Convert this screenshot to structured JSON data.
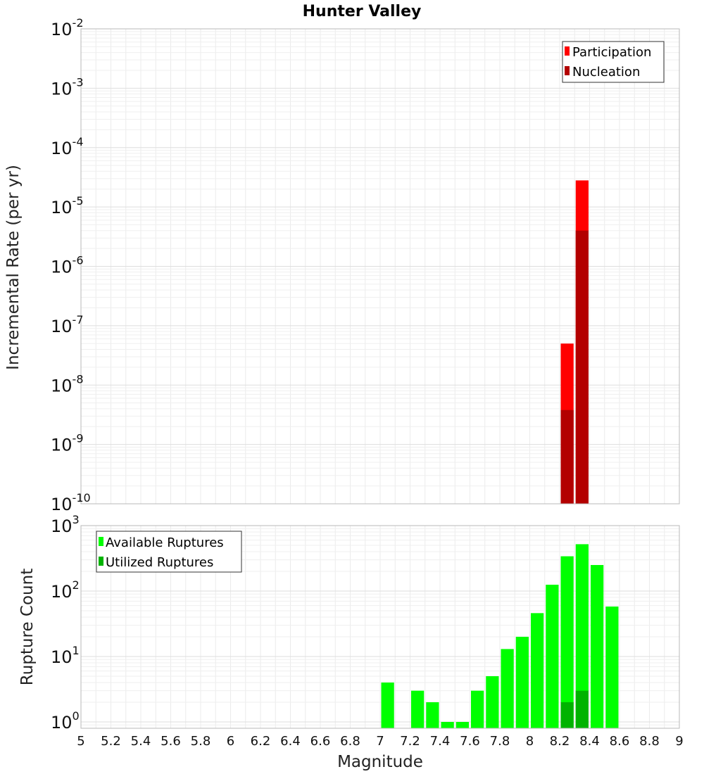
{
  "chart_data": [
    {
      "type": "bar",
      "title": "Hunter Valley",
      "xlabel": "Magnitude",
      "ylabel": "Incremental Rate (per yr)",
      "yscale": "log",
      "ylim": [
        1e-10,
        0.01
      ],
      "xlim": [
        5,
        9
      ],
      "bin_width": 0.1,
      "legend": {
        "position": "top-right",
        "entries": [
          "Participation",
          "Nucleation"
        ]
      },
      "colors": {
        "Participation": "#ff0000",
        "Nucleation": "#b30000"
      },
      "series": [
        {
          "name": "Participation",
          "x": [
            8.25,
            8.35
          ],
          "values": [
            5e-08,
            2.8e-05
          ]
        },
        {
          "name": "Nucleation",
          "x": [
            8.25,
            8.35
          ],
          "values": [
            3.8e-09,
            4e-06
          ]
        }
      ]
    },
    {
      "type": "bar",
      "xlabel": "Magnitude",
      "ylabel": "Rupture Count",
      "yscale": "log",
      "ylim": [
        0.8,
        1000
      ],
      "xlim": [
        5,
        9
      ],
      "bin_width": 0.1,
      "legend": {
        "position": "top-left",
        "entries": [
          "Available Ruptures",
          "Utilized Ruptures"
        ]
      },
      "colors": {
        "Available Ruptures": "#00ff00",
        "Utilized Ruptures": "#00b300"
      },
      "series": [
        {
          "name": "Available Ruptures",
          "x": [
            7.05,
            7.25,
            7.35,
            7.45,
            7.55,
            7.65,
            7.75,
            7.85,
            7.95,
            8.05,
            8.15,
            8.25,
            8.35,
            8.45,
            8.55
          ],
          "values": [
            4,
            3,
            2,
            1,
            1,
            3,
            5,
            13,
            20,
            46,
            125,
            340,
            520,
            250,
            58
          ]
        },
        {
          "name": "Utilized Ruptures",
          "x": [
            8.25,
            8.35
          ],
          "values": [
            2,
            3
          ]
        }
      ]
    }
  ],
  "x_ticks": [
    "5",
    "5.2",
    "5.4",
    "5.6",
    "5.8",
    "6",
    "6.2",
    "6.4",
    "6.6",
    "6.8",
    "7",
    "7.2",
    "7.4",
    "7.6",
    "7.8",
    "8",
    "8.2",
    "8.4",
    "8.6",
    "8.8",
    "9"
  ],
  "top_y_ticks": [
    {
      "base": "10",
      "exp": "-2"
    },
    {
      "base": "10",
      "exp": "-3"
    },
    {
      "base": "10",
      "exp": "-4"
    },
    {
      "base": "10",
      "exp": "-5"
    },
    {
      "base": "10",
      "exp": "-6"
    },
    {
      "base": "10",
      "exp": "-7"
    },
    {
      "base": "10",
      "exp": "-8"
    },
    {
      "base": "10",
      "exp": "-9"
    },
    {
      "base": "10",
      "exp": "-10"
    }
  ],
  "bottom_y_ticks": [
    {
      "base": "10",
      "exp": "3"
    },
    {
      "base": "10",
      "exp": "2"
    },
    {
      "base": "10",
      "exp": "1"
    },
    {
      "base": "10",
      "exp": "0"
    }
  ]
}
